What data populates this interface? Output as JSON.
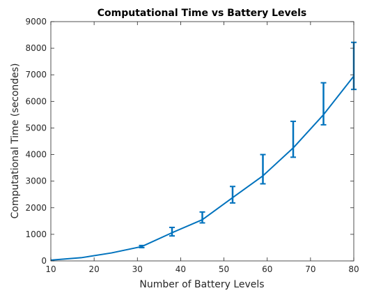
{
  "chart_data": {
    "type": "line",
    "title": "Computational Time vs Battery Levels",
    "xlabel": "Number of Battery Levels",
    "ylabel": "Computational Time (secondes)",
    "xlim": [
      10,
      80
    ],
    "ylim": [
      0,
      9000
    ],
    "xticks": [
      10,
      20,
      30,
      40,
      50,
      60,
      70,
      80
    ],
    "yticks": [
      0,
      1000,
      2000,
      3000,
      4000,
      5000,
      6000,
      7000,
      8000,
      9000
    ],
    "grid": false,
    "color": "#0072BD",
    "series": [
      {
        "x": [
          10,
          17,
          24,
          31,
          38,
          45,
          52,
          59,
          66,
          73,
          80
        ],
        "y": [
          30,
          120,
          300,
          540,
          1060,
          1550,
          2380,
          3200,
          4250,
          5500,
          6950
        ],
        "error_low": [
          0,
          0,
          0,
          40,
          120,
          120,
          200,
          300,
          350,
          380,
          500
        ],
        "error_high": [
          0,
          0,
          0,
          40,
          200,
          290,
          420,
          800,
          1000,
          1200,
          1270
        ]
      }
    ]
  }
}
